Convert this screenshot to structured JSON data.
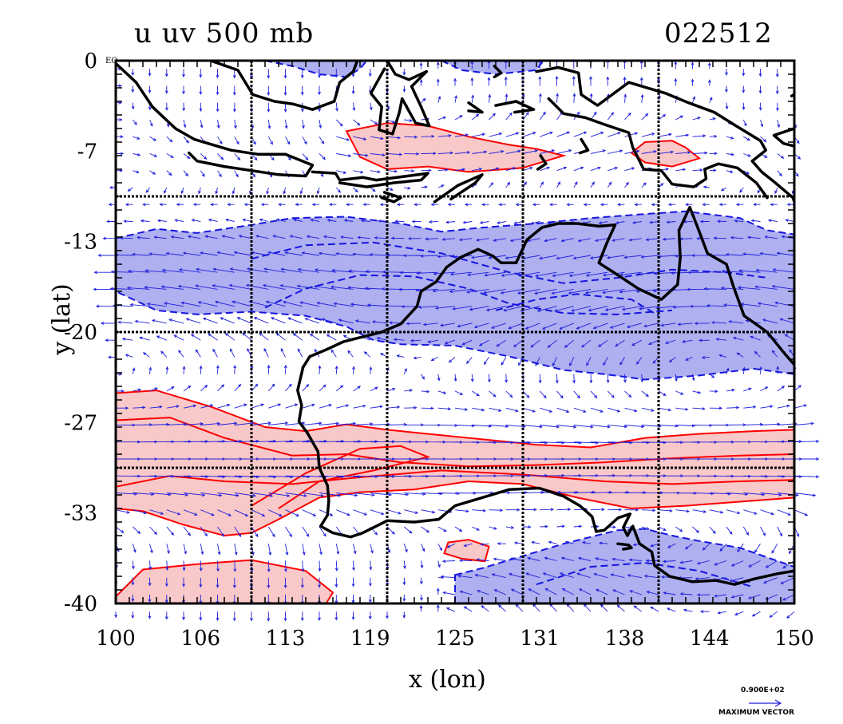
{
  "title": {
    "left": "u uv 500 mb",
    "right": "022512"
  },
  "axes": {
    "xlabel": "x (lon)",
    "ylabel": "y (lat)",
    "x_ticks": [
      "100",
      "106",
      "113",
      "119",
      "125",
      "131",
      "138",
      "144",
      "150"
    ],
    "y_ticks": [
      "0",
      "-7",
      "-13",
      "-20",
      "-27",
      "-33",
      "-40"
    ],
    "y0_suffix": "EQ",
    "xlim": [
      100,
      150
    ],
    "ylim": [
      -40,
      0
    ]
  },
  "reference_vector": {
    "value": "0.900E+02",
    "label": "MAXIMUM VECTOR"
  },
  "colors": {
    "positive_fill": "#f9c8c8",
    "positive_contour": "#ff0000",
    "negative_fill": "#aeb0f0",
    "negative_contour": "#1515e0",
    "vectors": "#1f1fdc",
    "coastline": "#000000",
    "grid": "#000000"
  },
  "chart_data": {
    "type": "map",
    "field": "u wind with uv vectors at 500 mb",
    "region": {
      "lon": [
        100,
        150
      ],
      "lat": [
        -40,
        0
      ]
    },
    "shaded_regions": [
      {
        "sign": "positive",
        "lon": [
          100,
          150
        ],
        "lat": [
          -33,
          -25
        ],
        "description": "westerly jet band"
      },
      {
        "sign": "positive",
        "lon": [
          118,
          143
        ],
        "lat": [
          -8,
          -5
        ],
        "description": "Indonesia positive band"
      },
      {
        "sign": "negative",
        "lon": [
          100,
          150
        ],
        "lat": [
          -22,
          -11
        ],
        "description": "easterly band"
      },
      {
        "sign": "negative",
        "lon": [
          125,
          150
        ],
        "lat": [
          -40,
          -35
        ],
        "description": "southeast negative area"
      }
    ]
  }
}
